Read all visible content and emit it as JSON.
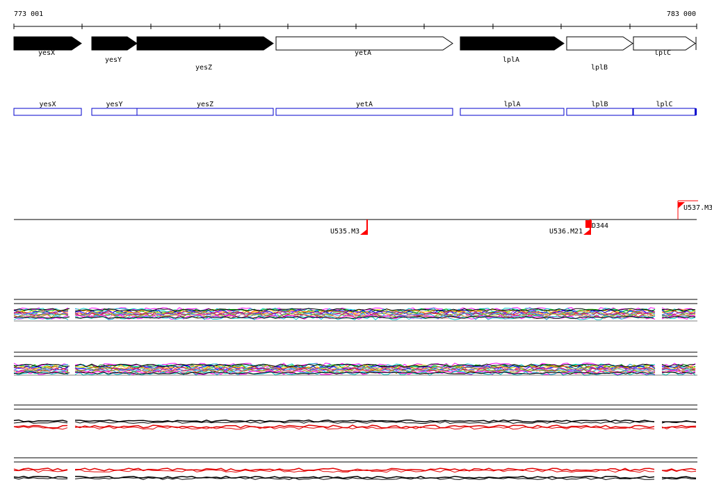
{
  "ruler": {
    "start_label": "773 001",
    "end_label": "783 000"
  },
  "genes": [
    {
      "name": "yesX",
      "strand": "+",
      "filled": true
    },
    {
      "name": "yesY",
      "strand": "+",
      "filled": true
    },
    {
      "name": "yesZ",
      "strand": "+",
      "filled": true
    },
    {
      "name": "yetA",
      "strand": "+",
      "filled": false
    },
    {
      "name": "lplA",
      "strand": "+",
      "filled": true
    },
    {
      "name": "lplB",
      "strand": "+",
      "filled": false
    },
    {
      "name": "lplC",
      "strand": "+",
      "filled": false
    }
  ],
  "annotation_track": [
    "yesX",
    "yesY",
    "yesZ",
    "yetA",
    "lplA",
    "lplB",
    "lplC"
  ],
  "features": [
    {
      "label": "U535.M3"
    },
    {
      "label": "U536.M21"
    },
    {
      "label": "D344"
    },
    {
      "label": "U537.M3"
    }
  ],
  "colors": {
    "gene_fill": "#000000",
    "gene_outline": "#000000",
    "annotation_box": "#0000cc",
    "feature_marker": "#ff0000",
    "profile_black": "#000000",
    "profile_red": "#e00000",
    "profile_palette": [
      "#ff00ff",
      "#00cccc",
      "#00aa00",
      "#ffcc00",
      "#0000ff",
      "#ff6600",
      "#9933cc",
      "#66cc66",
      "#cc0066",
      "#3399ff",
      "#999900",
      "#ff9999"
    ]
  }
}
